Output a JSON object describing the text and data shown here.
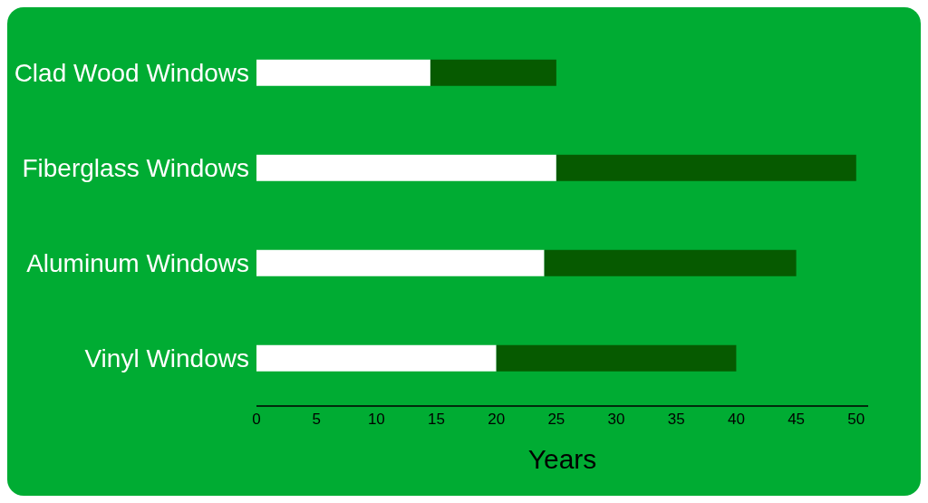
{
  "chart_data": {
    "type": "bar",
    "orientation": "horizontal",
    "stacked": true,
    "categories": [
      "Clad Wood Windows",
      "Fiberglass Windows",
      "Aluminum Windows",
      "Vinyl Windows"
    ],
    "series": [
      {
        "color": "#ffffff",
        "values": [
          14.5,
          25,
          24,
          20
        ]
      },
      {
        "color": "#065a00",
        "values": [
          10.5,
          25,
          21,
          20
        ]
      }
    ],
    "xlabel": "Years",
    "xlim": [
      0,
      51
    ],
    "xticks": [
      0,
      5,
      10,
      15,
      20,
      25,
      30,
      35,
      40,
      45,
      50
    ],
    "grid": false,
    "legend": false
  }
}
